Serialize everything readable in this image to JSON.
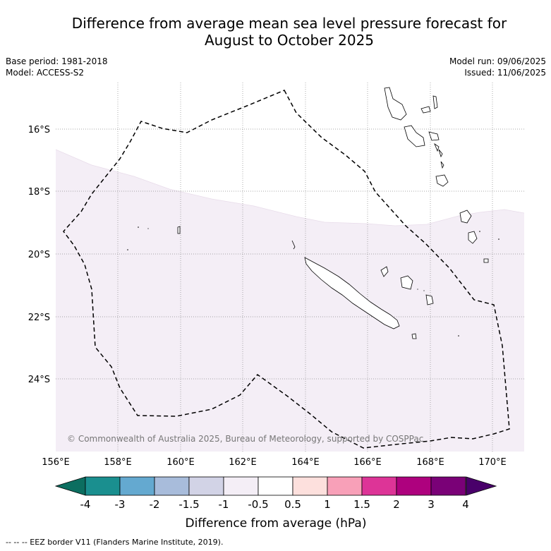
{
  "title_line1": "Difference from average mean sea level pressure forecast for",
  "title_line2": "August to October 2025",
  "base_period": "Base period: 1981-2018",
  "model": "Model: ACCESS-S2",
  "model_run": "Model run: 09/06/2025",
  "issued": "Issued: 11/06/2025",
  "copyright": "© Commonwealth of Australia 2025, Bureau of Meteorology, supported by COSPPac",
  "lon_labels": [
    "156°E",
    "158°E",
    "160°E",
    "162°E",
    "164°E",
    "166°E",
    "168°E",
    "170°E"
  ],
  "lat_labels": [
    "16°S",
    "18°S",
    "20°S",
    "22°S",
    "24°S"
  ],
  "colorbar": {
    "ticks": [
      "-4",
      "-3",
      "-2",
      "-1.5",
      "-1",
      "-0.5",
      "0.5",
      "1",
      "1.5",
      "2",
      "3",
      "4"
    ],
    "colors": [
      "#1a8f8f",
      "#64a9d0",
      "#a8bcdb",
      "#d2d3e6",
      "#f4eef6",
      "#ffffff",
      "#fde0dd",
      "#f8a0b8",
      "#dd3497",
      "#ae017e",
      "#7a0177"
    ],
    "under_color": "#0c6e60",
    "over_color": "#49006a",
    "label": "Difference from average (hPa)"
  },
  "legend_text": "-- -- -- EEZ border V11 (Flanders Marine Institute, 2019).",
  "colors": {
    "region_fill": "#f4eef6"
  }
}
